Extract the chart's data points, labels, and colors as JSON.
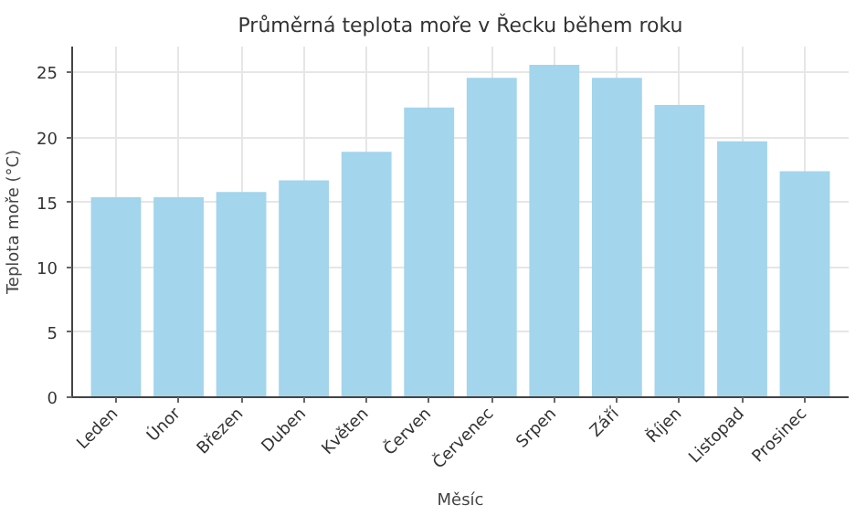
{
  "chart_data": {
    "type": "bar",
    "title": "Průměrná teplota moře v Řecku během roku",
    "xlabel": "Měsíc",
    "ylabel": "Teplota moře (°C)",
    "categories": [
      "Leden",
      "Únor",
      "Březen",
      "Duben",
      "Květen",
      "Červen",
      "Červenec",
      "Srpen",
      "Září",
      "Říjen",
      "Listopad",
      "Prosinec"
    ],
    "values": [
      15.4,
      15.4,
      15.8,
      16.7,
      18.9,
      22.3,
      24.6,
      25.6,
      24.6,
      22.5,
      19.7,
      17.4
    ],
    "color": "#a3d5ec",
    "ylim": [
      0,
      27
    ],
    "yticks": [
      0,
      5,
      10,
      15,
      20,
      25
    ],
    "grid": true
  }
}
